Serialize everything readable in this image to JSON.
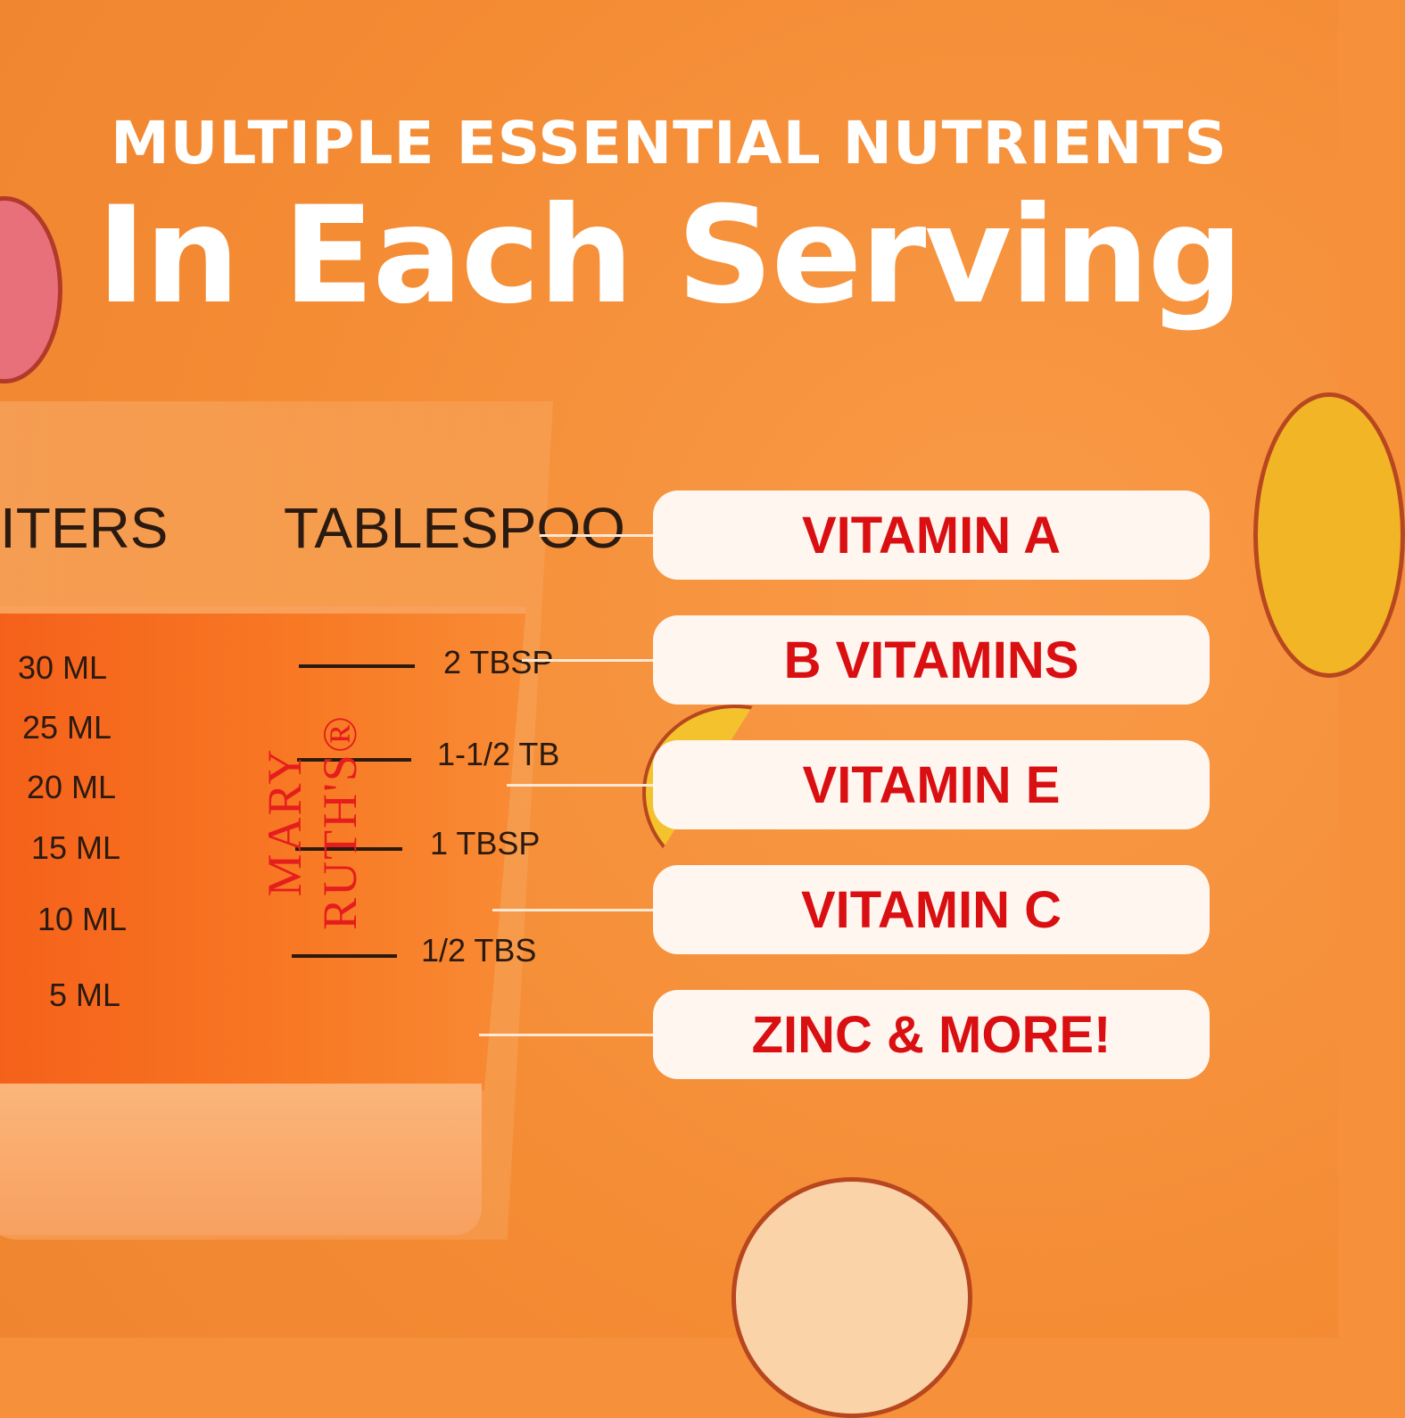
{
  "headline": {
    "top": "MULTIPLE ESSENTIAL NUTRIENTS",
    "main": "In Each Serving"
  },
  "glass": {
    "brand": "MARY RUTH'S®",
    "headers": [
      "ITERS",
      "TABLESPOO"
    ],
    "ml_marks": [
      "30 ML",
      "25 ML",
      "20 ML",
      "15 ML",
      "10 ML",
      "5 ML"
    ],
    "tbsp_marks": [
      "2 TBSP",
      "1-1/2 TB",
      "1 TBSP",
      "1/2 TBS"
    ]
  },
  "nutrients": [
    "VITAMIN A",
    "B VITAMINS",
    "VITAMIN E",
    "VITAMIN C",
    "ZINC & MORE!"
  ],
  "colors": {
    "background": "#F7903A",
    "pill": "#FFF6F0",
    "pill_text": "#D90F12",
    "headline": "#FFFFFF"
  }
}
